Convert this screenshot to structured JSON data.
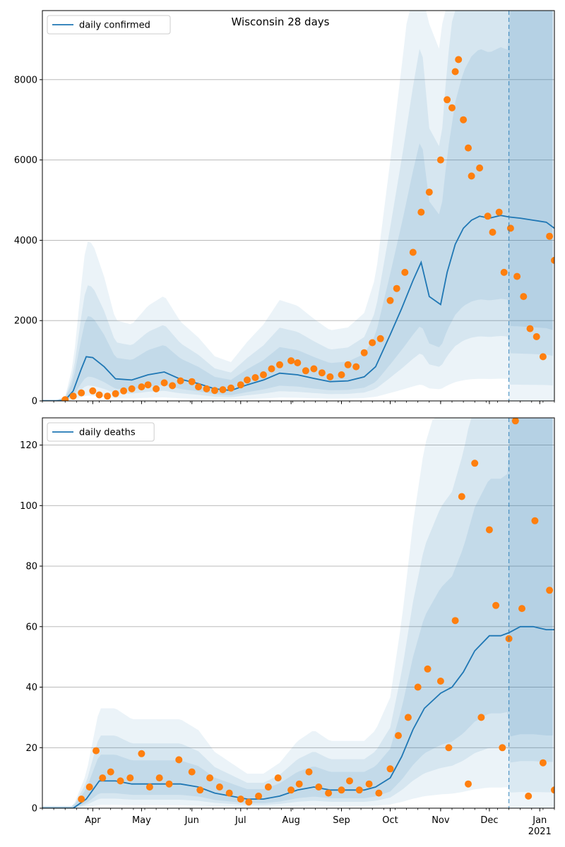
{
  "figure": {
    "title": "Wisconsin 28 days"
  },
  "colors": {
    "line": "#1f77b4",
    "points": "#ff7f0e",
    "band": "#1f77b4",
    "grid": "#b0b0b0",
    "vline": "#1f77b4"
  },
  "chart_data": [
    {
      "type": "line",
      "title": "Wisconsin 28 days",
      "xlabel": "",
      "ylabel": "",
      "legend": {
        "entries": [
          "daily confirmed"
        ],
        "placement": "top-left"
      },
      "x_range": [
        "2020-03-01",
        "2021-01-10"
      ],
      "ylim": [
        0,
        9720
      ],
      "y_ticks": [
        0,
        2000,
        4000,
        6000,
        8000
      ],
      "x_tick_labels": [
        {
          "date": "2020-04-01",
          "label": "Apr"
        },
        {
          "date": "2020-05-01",
          "label": "May"
        },
        {
          "date": "2020-06-01",
          "label": "Jun"
        },
        {
          "date": "2020-07-01",
          "label": "Jul"
        },
        {
          "date": "2020-08-01",
          "label": "Aug"
        },
        {
          "date": "2020-09-01",
          "label": "Sep"
        },
        {
          "date": "2020-10-01",
          "label": "Oct"
        },
        {
          "date": "2020-11-01",
          "label": "Nov"
        },
        {
          "date": "2020-12-01",
          "label": "Dec"
        },
        {
          "date": "2021-01-01",
          "label": "Jan\n2021"
        }
      ],
      "grid": "horizontal",
      "forecast_start": "2020-12-13",
      "series": [
        {
          "name": "daily confirmed",
          "kind": "model-median",
          "x": [
            "2020-03-01",
            "2020-03-10",
            "2020-03-15",
            "2020-03-20",
            "2020-03-25",
            "2020-03-28",
            "2020-04-01",
            "2020-04-08",
            "2020-04-15",
            "2020-04-25",
            "2020-05-05",
            "2020-05-15",
            "2020-05-25",
            "2020-06-05",
            "2020-06-15",
            "2020-06-25",
            "2020-07-05",
            "2020-07-15",
            "2020-07-25",
            "2020-08-05",
            "2020-08-15",
            "2020-08-25",
            "2020-09-05",
            "2020-09-15",
            "2020-09-22",
            "2020-10-01",
            "2020-10-08",
            "2020-10-15",
            "2020-10-20",
            "2020-10-25",
            "2020-11-01",
            "2020-11-05",
            "2020-11-10",
            "2020-11-15",
            "2020-11-20",
            "2020-11-25",
            "2020-12-01",
            "2020-12-08",
            "2020-12-13",
            "2020-12-20",
            "2020-12-28",
            "2021-01-05",
            "2021-01-10"
          ],
          "y": [
            0,
            0,
            20,
            250,
            800,
            1100,
            1080,
            850,
            550,
            520,
            650,
            720,
            540,
            430,
            300,
            260,
            400,
            520,
            690,
            650,
            560,
            480,
            500,
            600,
            850,
            1650,
            2300,
            3000,
            3450,
            2600,
            2400,
            3200,
            3900,
            4300,
            4500,
            4600,
            4550,
            4620,
            4580,
            4550,
            4500,
            4450,
            4300
          ]
        },
        {
          "name": "daily confirmed (observed)",
          "kind": "observed",
          "x": [
            "2020-03-15",
            "2020-03-20",
            "2020-03-25",
            "2020-04-01",
            "2020-04-05",
            "2020-04-10",
            "2020-04-15",
            "2020-04-20",
            "2020-04-25",
            "2020-05-01",
            "2020-05-05",
            "2020-05-10",
            "2020-05-15",
            "2020-05-20",
            "2020-05-25",
            "2020-06-01",
            "2020-06-05",
            "2020-06-10",
            "2020-06-15",
            "2020-06-20",
            "2020-06-25",
            "2020-07-01",
            "2020-07-05",
            "2020-07-10",
            "2020-07-15",
            "2020-07-20",
            "2020-07-25",
            "2020-08-01",
            "2020-08-05",
            "2020-08-10",
            "2020-08-15",
            "2020-08-20",
            "2020-08-25",
            "2020-09-01",
            "2020-09-05",
            "2020-09-10",
            "2020-09-15",
            "2020-09-20",
            "2020-09-25",
            "2020-10-01",
            "2020-10-05",
            "2020-10-10",
            "2020-10-15",
            "2020-10-20",
            "2020-10-25",
            "2020-11-01",
            "2020-11-05",
            "2020-11-08",
            "2020-11-10",
            "2020-11-12",
            "2020-11-15",
            "2020-11-18",
            "2020-11-20",
            "2020-11-25",
            "2020-11-30",
            "2020-12-03",
            "2020-12-07",
            "2020-12-10",
            "2020-12-14",
            "2020-12-18",
            "2020-12-22",
            "2020-12-26",
            "2020-12-30",
            "2021-01-03",
            "2021-01-07",
            "2021-01-10"
          ],
          "y": [
            30,
            120,
            200,
            250,
            150,
            120,
            180,
            250,
            300,
            350,
            400,
            300,
            450,
            380,
            500,
            480,
            350,
            300,
            260,
            280,
            320,
            400,
            520,
            580,
            650,
            800,
            900,
            1000,
            950,
            750,
            800,
            700,
            600,
            650,
            900,
            850,
            1200,
            1450,
            1550,
            2500,
            2800,
            3200,
            3700,
            4700,
            5200,
            6000,
            7500,
            7300,
            8200,
            8500,
            7000,
            6300,
            5600,
            5800,
            4600,
            4200,
            4700,
            3200,
            4300,
            3100,
            2600,
            1800,
            1600,
            1100,
            4100,
            3500
          ]
        }
      ]
    },
    {
      "type": "line",
      "title": "",
      "xlabel": "",
      "ylabel": "",
      "legend": {
        "entries": [
          "daily deaths"
        ],
        "placement": "top-left"
      },
      "x_range": [
        "2020-03-01",
        "2021-01-10"
      ],
      "ylim": [
        0,
        129
      ],
      "y_ticks": [
        0,
        20,
        40,
        60,
        80,
        100,
        120
      ],
      "x_tick_labels": [
        {
          "date": "2020-04-01",
          "label": "Apr"
        },
        {
          "date": "2020-05-01",
          "label": "May"
        },
        {
          "date": "2020-06-01",
          "label": "Jun"
        },
        {
          "date": "2020-07-01",
          "label": "Jul"
        },
        {
          "date": "2020-08-01",
          "label": "Aug"
        },
        {
          "date": "2020-09-01",
          "label": "Sep"
        },
        {
          "date": "2020-10-01",
          "label": "Oct"
        },
        {
          "date": "2020-11-01",
          "label": "Nov"
        },
        {
          "date": "2020-12-01",
          "label": "Dec"
        },
        {
          "date": "2021-01-01",
          "label": "Jan\n2021"
        }
      ],
      "grid": "horizontal",
      "forecast_start": "2020-12-13",
      "series": [
        {
          "name": "daily deaths",
          "kind": "model-median",
          "x": [
            "2020-03-01",
            "2020-03-20",
            "2020-03-28",
            "2020-04-05",
            "2020-04-15",
            "2020-04-25",
            "2020-05-05",
            "2020-05-15",
            "2020-05-25",
            "2020-06-05",
            "2020-06-15",
            "2020-06-25",
            "2020-07-05",
            "2020-07-15",
            "2020-07-25",
            "2020-08-05",
            "2020-08-15",
            "2020-08-25",
            "2020-09-05",
            "2020-09-15",
            "2020-09-22",
            "2020-10-01",
            "2020-10-08",
            "2020-10-15",
            "2020-10-22",
            "2020-11-01",
            "2020-11-08",
            "2020-11-15",
            "2020-11-22",
            "2020-12-01",
            "2020-12-08",
            "2020-12-13",
            "2020-12-20",
            "2020-12-28",
            "2021-01-05",
            "2021-01-10"
          ],
          "y": [
            0,
            0,
            3,
            9,
            9,
            8,
            8,
            8,
            8,
            7,
            5,
            4,
            3,
            3,
            4,
            6,
            7,
            6,
            6,
            6,
            7,
            10,
            17,
            26,
            33,
            38,
            40,
            45,
            52,
            57,
            57,
            58,
            60,
            60,
            59,
            59
          ]
        },
        {
          "name": "daily deaths (observed)",
          "kind": "observed",
          "x": [
            "2020-03-25",
            "2020-03-30",
            "2020-04-03",
            "2020-04-07",
            "2020-04-12",
            "2020-04-18",
            "2020-04-24",
            "2020-05-01",
            "2020-05-06",
            "2020-05-12",
            "2020-05-18",
            "2020-05-24",
            "2020-06-01",
            "2020-06-06",
            "2020-06-12",
            "2020-06-18",
            "2020-06-24",
            "2020-07-01",
            "2020-07-06",
            "2020-07-12",
            "2020-07-18",
            "2020-07-24",
            "2020-08-01",
            "2020-08-06",
            "2020-08-12",
            "2020-08-18",
            "2020-08-24",
            "2020-09-01",
            "2020-09-06",
            "2020-09-12",
            "2020-09-18",
            "2020-09-24",
            "2020-10-01",
            "2020-10-06",
            "2020-10-12",
            "2020-10-18",
            "2020-10-24",
            "2020-11-01",
            "2020-11-06",
            "2020-11-10",
            "2020-11-14",
            "2020-11-18",
            "2020-11-22",
            "2020-11-26",
            "2020-12-01",
            "2020-12-05",
            "2020-12-09",
            "2020-12-13",
            "2020-12-17",
            "2020-12-21",
            "2020-12-25",
            "2020-12-29",
            "2021-01-03",
            "2021-01-07",
            "2021-01-10"
          ],
          "y": [
            3,
            7,
            19,
            10,
            12,
            9,
            10,
            18,
            7,
            10,
            8,
            16,
            12,
            6,
            10,
            7,
            5,
            3,
            2,
            4,
            7,
            10,
            6,
            8,
            12,
            7,
            5,
            6,
            9,
            6,
            8,
            5,
            13,
            24,
            30,
            40,
            46,
            42,
            20,
            62,
            103,
            8,
            114,
            30,
            92,
            67,
            20,
            56,
            128,
            66,
            4,
            95,
            15,
            72,
            6
          ]
        }
      ]
    }
  ]
}
